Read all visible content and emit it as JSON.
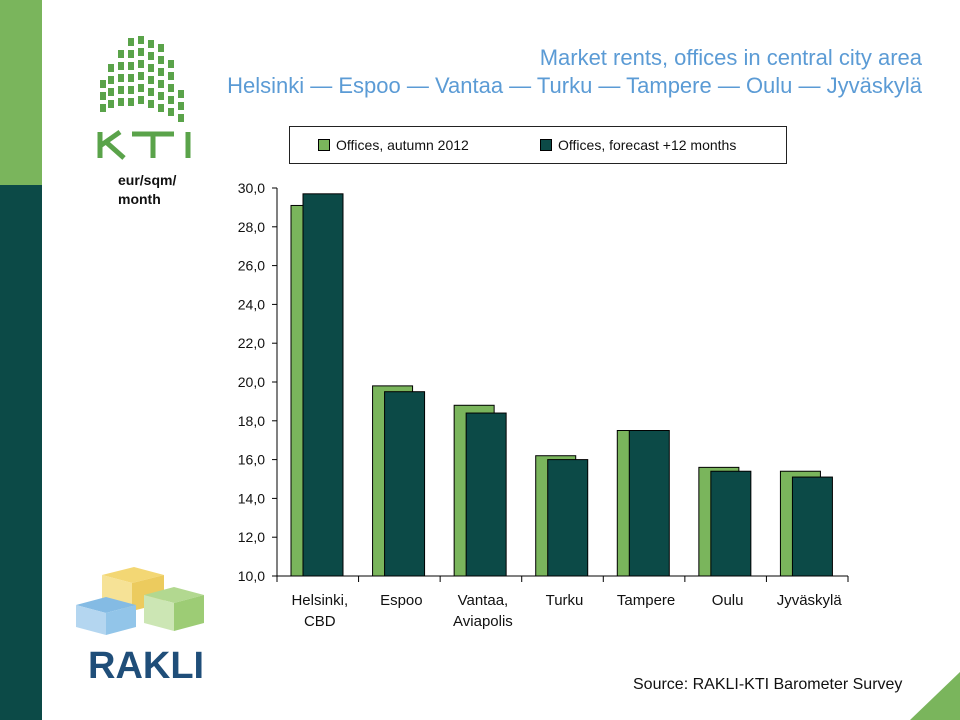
{
  "header": {
    "title": "Market rents, offices in central city area",
    "subtitle": "Helsinki — Espoo — Vantaa — Turku — Tampere — Oulu — Jyväskylä"
  },
  "logos": {
    "kti": "KTI",
    "rakli": "RAKLI"
  },
  "y_unit": "eur/sqm/ month",
  "source": "Source: RAKLI-KTI Barometer Survey",
  "colors": {
    "series_2012": "#7ab55c",
    "series_forecast": "#0c4a47",
    "title": "#5b9bd5",
    "brand_green": "#7ab55c",
    "brand_dark": "#0c4a47",
    "rakli_blue": "#1f4e79"
  },
  "chart_data": {
    "type": "bar",
    "categories": [
      "Helsinki,\nCBD",
      "Espoo",
      "Vantaa,\nAviapolis",
      "Turku",
      "Tampere",
      "Oulu",
      "Jyväskylä"
    ],
    "series": [
      {
        "name": "Offices, autumn 2012",
        "values": [
          29.1,
          19.8,
          18.8,
          16.2,
          17.5,
          15.6,
          15.4
        ]
      },
      {
        "name": "Offices, forecast +12 months",
        "values": [
          29.7,
          19.5,
          18.4,
          16.0,
          17.5,
          15.4,
          15.1
        ]
      }
    ],
    "ylim": [
      10,
      30
    ],
    "yticks": [
      10,
      12,
      14,
      16,
      18,
      20,
      22,
      24,
      26,
      28,
      30
    ],
    "ytick_labels": [
      "10,0",
      "12,0",
      "14,0",
      "16,0",
      "18,0",
      "20,0",
      "22,0",
      "24,0",
      "26,0",
      "28,0",
      "30,0"
    ],
    "grid": false,
    "legend": "top"
  }
}
